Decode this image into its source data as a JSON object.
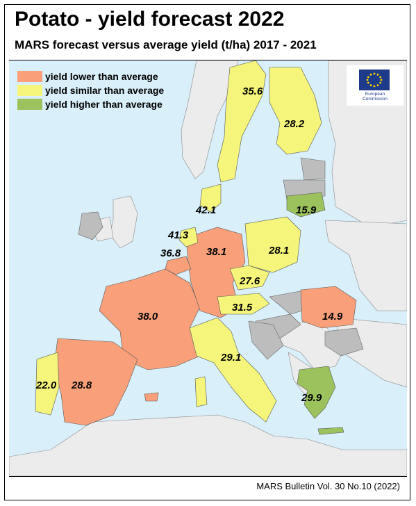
{
  "title": "Potato - yield forecast 2022",
  "subtitle": "MARS forecast versus average yield (t/ha) 2017 - 2021",
  "footer": "MARS Bulletin Vol. 30 No.10 (2022)",
  "colors": {
    "lower": "#f9a07a",
    "similar": "#f4f57a",
    "higher": "#9cc25e",
    "no_data": "#bdbdbd",
    "non_eu": "#ececec",
    "sea": "#d9effa"
  },
  "legend": [
    {
      "label": "yield lower than average",
      "category": "lower"
    },
    {
      "label": "yield similar than average",
      "category": "similar"
    },
    {
      "label": "yield higher than average",
      "category": "higher"
    }
  ],
  "logo": {
    "icon": "eu-flag-icon",
    "text_line1": "European",
    "text_line2": "Commission"
  },
  "regions": [
    {
      "country": "Sweden",
      "value": "35.6",
      "category": "similar"
    },
    {
      "country": "Finland",
      "value": "28.2",
      "category": "similar"
    },
    {
      "country": "Denmark",
      "value": "42.1",
      "category": "similar"
    },
    {
      "country": "Lithuania",
      "value": "15.9",
      "category": "higher"
    },
    {
      "country": "Netherlands",
      "value": "41.3",
      "category": "similar"
    },
    {
      "country": "Belgium",
      "value": "36.8",
      "category": "lower"
    },
    {
      "country": "Germany",
      "value": "38.1",
      "category": "lower"
    },
    {
      "country": "Poland",
      "value": "28.1",
      "category": "similar"
    },
    {
      "country": "Czechia",
      "value": "27.6",
      "category": "similar"
    },
    {
      "country": "Austria",
      "value": "31.5",
      "category": "similar"
    },
    {
      "country": "France",
      "value": "38.0",
      "category": "lower"
    },
    {
      "country": "Romania",
      "value": "14.9",
      "category": "lower"
    },
    {
      "country": "Italy",
      "value": "29.1",
      "category": "similar"
    },
    {
      "country": "Portugal",
      "value": "22.0",
      "category": "similar"
    },
    {
      "country": "Spain",
      "value": "28.8",
      "category": "lower"
    },
    {
      "country": "Greece",
      "value": "29.9",
      "category": "higher"
    }
  ]
}
